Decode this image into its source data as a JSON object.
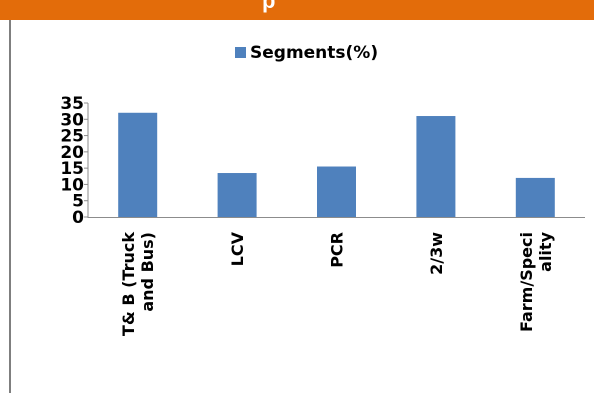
{
  "header": {
    "visible_text": "p",
    "color": "#E36C0A"
  },
  "chart_data": {
    "type": "bar",
    "categories": [
      [
        "T& B (Truck",
        "and Bus)"
      ],
      [
        "LCV"
      ],
      [
        "PCR"
      ],
      [
        "2/3w"
      ],
      [
        "Farm/Speci",
        "ality"
      ]
    ],
    "series": [
      {
        "name": "Segments(%)",
        "values": [
          32,
          13.5,
          15.5,
          31,
          12
        ],
        "color": "#4F81BD"
      }
    ],
    "title": "",
    "xlabel": "",
    "ylabel": "",
    "ylim": [
      0,
      35
    ],
    "yticks": [
      "0",
      "5",
      "10",
      "15",
      "20",
      "25",
      "30",
      "35"
    ],
    "grid": false,
    "legend_position": "top"
  }
}
